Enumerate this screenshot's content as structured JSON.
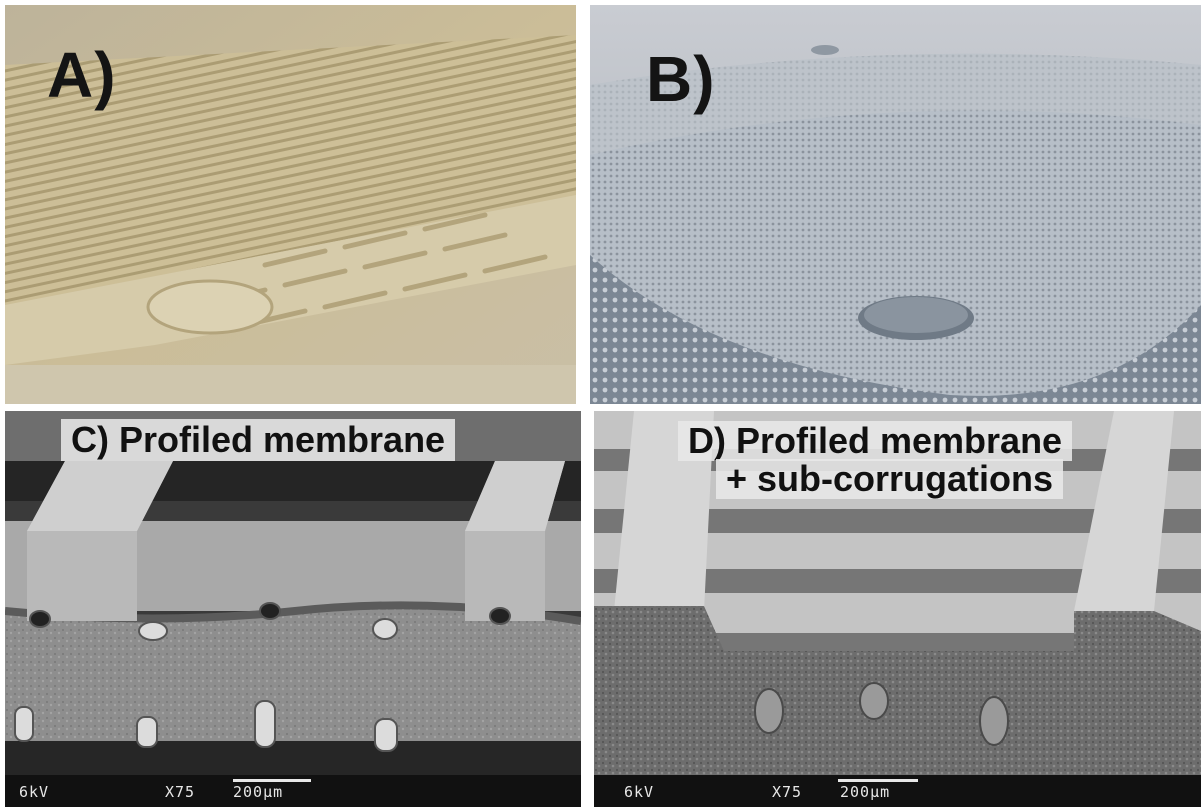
{
  "panels": [
    {
      "id": "A",
      "label": "A)"
    },
    {
      "id": "B",
      "label": "B)"
    },
    {
      "id": "C",
      "label": "C)",
      "caption": "C) Profiled membrane",
      "sem": {
        "voltage": "6kV",
        "magnification": "X75",
        "scale": "200µm"
      }
    },
    {
      "id": "D",
      "label": "D)",
      "caption_line1": "D) Profiled membrane",
      "caption_line2": "+ sub-corrugations",
      "sem": {
        "voltage": "6kV",
        "magnification": "X75",
        "scale": "200µm"
      }
    }
  ]
}
